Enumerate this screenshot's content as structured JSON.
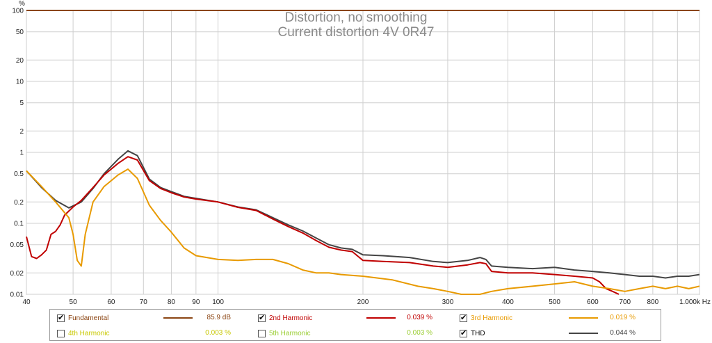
{
  "chart_data": {
    "type": "line",
    "title": "Distortion, no smoothing",
    "subtitle": "Current distortion 4V 0R47",
    "ylabel": "%",
    "xlabel": "Hz",
    "xscale": "log",
    "yscale": "log",
    "xlim": [
      40,
      1000
    ],
    "ylim": [
      0.01,
      100
    ],
    "grid": true,
    "x_ticks": [
      {
        "v": 40,
        "label": "40"
      },
      {
        "v": 50,
        "label": "50"
      },
      {
        "v": 60,
        "label": "60"
      },
      {
        "v": 70,
        "label": "70"
      },
      {
        "v": 80,
        "label": "80"
      },
      {
        "v": 90,
        "label": "90"
      },
      {
        "v": 100,
        "label": "100"
      },
      {
        "v": 200,
        "label": "200"
      },
      {
        "v": 300,
        "label": "300"
      },
      {
        "v": 400,
        "label": "400"
      },
      {
        "v": 500,
        "label": "500"
      },
      {
        "v": 600,
        "label": "600"
      },
      {
        "v": 700,
        "label": "700"
      },
      {
        "v": 800,
        "label": "800"
      },
      {
        "v": 1000,
        "label": "1.000k Hz"
      }
    ],
    "y_ticks": [
      {
        "v": 100,
        "label": "100"
      },
      {
        "v": 50,
        "label": "50"
      },
      {
        "v": 20,
        "label": "20"
      },
      {
        "v": 10,
        "label": "10"
      },
      {
        "v": 5,
        "label": "5"
      },
      {
        "v": 2,
        "label": "2"
      },
      {
        "v": 1,
        "label": "1"
      },
      {
        "v": 0.5,
        "label": "0.5"
      },
      {
        "v": 0.2,
        "label": "0.2"
      },
      {
        "v": 0.1,
        "label": "0.1"
      },
      {
        "v": 0.05,
        "label": "0.05"
      },
      {
        "v": 0.02,
        "label": "0.02"
      },
      {
        "v": 0.01,
        "label": "0.01"
      }
    ],
    "series": [
      {
        "name": "Fundamental",
        "color": "#8b4513",
        "x": [
          40,
          1000
        ],
        "y": [
          100,
          100
        ]
      },
      {
        "name": "THD",
        "color": "#444444",
        "x": [
          40,
          43,
          46,
          49,
          52,
          55,
          58,
          62,
          65,
          68,
          72,
          76,
          80,
          85,
          90,
          100,
          110,
          120,
          130,
          140,
          150,
          160,
          170,
          180,
          190,
          200,
          220,
          250,
          280,
          300,
          330,
          350,
          360,
          370,
          400,
          450,
          500,
          550,
          600,
          650,
          700,
          750,
          800,
          850,
          900,
          950,
          1000
        ],
        "y": [
          0.55,
          0.32,
          0.21,
          0.165,
          0.2,
          0.31,
          0.5,
          0.8,
          1.05,
          0.9,
          0.42,
          0.32,
          0.28,
          0.24,
          0.225,
          0.2,
          0.17,
          0.155,
          0.12,
          0.095,
          0.078,
          0.062,
          0.05,
          0.045,
          0.043,
          0.036,
          0.035,
          0.033,
          0.029,
          0.028,
          0.03,
          0.033,
          0.031,
          0.025,
          0.024,
          0.023,
          0.024,
          0.022,
          0.021,
          0.02,
          0.019,
          0.018,
          0.018,
          0.017,
          0.018,
          0.018,
          0.019
        ]
      },
      {
        "name": "2nd Harmonic",
        "color": "#c00000",
        "x": [
          40,
          41,
          42,
          43,
          44,
          45,
          46,
          47,
          48,
          50,
          52,
          55,
          58,
          62,
          65,
          68,
          72,
          76,
          80,
          85,
          90,
          100,
          110,
          120,
          130,
          140,
          150,
          160,
          170,
          180,
          190,
          200,
          220,
          250,
          280,
          300,
          330,
          350,
          360,
          370,
          400,
          450,
          500,
          550,
          600,
          620,
          640,
          660,
          680
        ],
        "y": [
          0.065,
          0.034,
          0.032,
          0.036,
          0.042,
          0.07,
          0.077,
          0.095,
          0.13,
          0.17,
          0.21,
          0.32,
          0.48,
          0.7,
          0.87,
          0.78,
          0.4,
          0.31,
          0.27,
          0.235,
          0.22,
          0.2,
          0.168,
          0.152,
          0.115,
          0.09,
          0.073,
          0.057,
          0.046,
          0.042,
          0.04,
          0.03,
          0.029,
          0.028,
          0.025,
          0.024,
          0.026,
          0.028,
          0.027,
          0.021,
          0.02,
          0.02,
          0.019,
          0.018,
          0.017,
          0.015,
          0.012,
          0.011,
          0.01
        ]
      },
      {
        "name": "3rd Harmonic",
        "color": "#e89a00",
        "x": [
          40,
          43,
          46,
          49,
          50,
          51,
          52,
          53,
          55,
          58,
          62,
          65,
          68,
          72,
          76,
          80,
          85,
          90,
          100,
          110,
          120,
          130,
          140,
          150,
          160,
          170,
          180,
          200,
          230,
          260,
          280,
          300,
          320,
          350,
          370,
          400,
          450,
          500,
          550,
          600,
          650,
          700,
          750,
          800,
          850,
          900,
          950,
          1000
        ],
        "y": [
          0.55,
          0.33,
          0.2,
          0.12,
          0.07,
          0.03,
          0.025,
          0.07,
          0.2,
          0.33,
          0.48,
          0.58,
          0.43,
          0.18,
          0.11,
          0.075,
          0.045,
          0.035,
          0.031,
          0.03,
          0.031,
          0.031,
          0.027,
          0.022,
          0.02,
          0.02,
          0.019,
          0.018,
          0.016,
          0.013,
          0.012,
          0.011,
          0.01,
          0.01,
          0.011,
          0.012,
          0.013,
          0.014,
          0.015,
          0.013,
          0.012,
          0.011,
          0.012,
          0.013,
          0.012,
          0.013,
          0.012,
          0.013
        ]
      }
    ]
  },
  "legend": {
    "items": [
      {
        "label": "Fundamental",
        "checked": true,
        "color": "#8b4513",
        "value": "85.9 dB"
      },
      {
        "label": "2nd Harmonic",
        "checked": true,
        "color": "#c00000",
        "value": "0.039 %"
      },
      {
        "label": "3rd Harmonic",
        "checked": true,
        "color": "#e89a00",
        "value": "0.019 %"
      },
      {
        "label": "4th Harmonic",
        "checked": false,
        "color": "#c8c800",
        "value": "0.003 %"
      },
      {
        "label": "5th Harmonic",
        "checked": false,
        "color": "#9acd32",
        "value": "0.003 %"
      },
      {
        "label": "THD",
        "checked": true,
        "color": "#444444",
        "value": "0.044 %"
      }
    ]
  }
}
